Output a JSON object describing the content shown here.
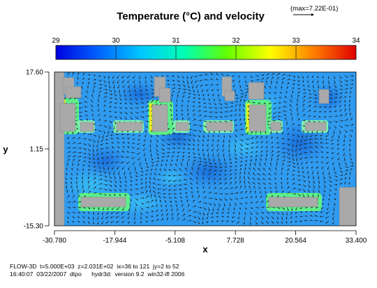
{
  "chart_data": {
    "type": "heatmap",
    "title": "Temperature (°C) and velocity",
    "max_label": "(max=7.22E-01)",
    "colorbar": {
      "ticks": [
        "29",
        "30",
        "31",
        "32",
        "33",
        "34"
      ],
      "min": 29,
      "max": 34,
      "stops": [
        "#0000e0",
        "#0064ff",
        "#00c8ff",
        "#00ffb4",
        "#64ff00",
        "#ffff00",
        "#ff8000",
        "#e00000"
      ]
    },
    "xlabel": "x",
    "ylabel": "y",
    "x_ticks": [
      "-30.780",
      "-17.944",
      "-5.108",
      "7.728",
      "20.564",
      "33.400"
    ],
    "y_ticks": [
      "17.60",
      "1.15",
      "-15.30"
    ],
    "xlim": [
      -30.78,
      33.4
    ],
    "ylim": [
      -15.3,
      17.6
    ],
    "velocity_vectors": true,
    "max_velocity": 0.722,
    "field_colors": {
      "background": "#2f9bf0",
      "cold_core": "#1666d6",
      "obstacle": "#a9a9a9",
      "edge_green": "#5cf08a",
      "edge_yellow": "#e8f020",
      "hot_red": "#e82000",
      "vector": "#1a1a1a"
    }
  },
  "footer": {
    "line1": "FLOW-3D  t=5.000E+03  z=2.031E+02  ix=36 to 121  jy=2 to 52",
    "line2": "16:40:07  03/22/2007  dtpo      hydr3d:  version 9.2  win32-ifl 2006"
  }
}
